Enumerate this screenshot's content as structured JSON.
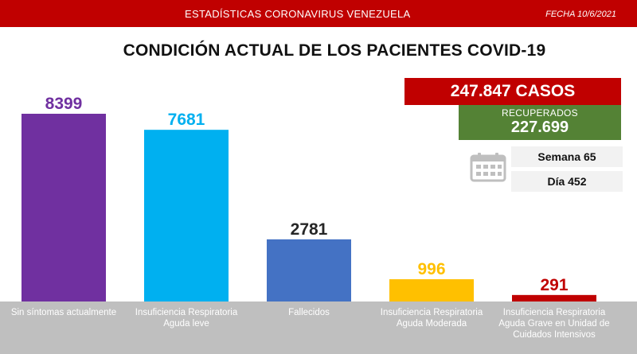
{
  "header": {
    "title": "ESTADÍSTICAS CORONAVIRUS VENEZUELA",
    "date": "FECHA 10/6/2021"
  },
  "chart_data": {
    "type": "bar",
    "title": "CONDICIÓN ACTUAL DE LOS PACIENTES COVID-19",
    "categories": [
      "Sin síntomas actualmente",
      "Insuficiencia Respiratoria Aguda leve",
      "Fallecidos",
      "Insuficiencia Respiratoria Aguda Moderada",
      "Insuficiencia Respiratoria Aguda Grave en Unidad de Cuidados Intensivos"
    ],
    "values": [
      8399,
      7681,
      2781,
      996,
      291
    ],
    "value_labels": [
      "8399",
      "7681",
      "2781",
      "996",
      "291"
    ],
    "colors": [
      "#7030a0",
      "#00b0f0",
      "#4472c4",
      "#ffc000",
      "#c00000"
    ],
    "ylim": [
      0,
      8399
    ],
    "xlabel": "",
    "ylabel": "",
    "grid": false,
    "legend": "none"
  },
  "summary": {
    "cases": "247.847 CASOS",
    "recovered_label": "RECUPERADOS",
    "recovered_value": "227.699",
    "week": "Semana 65",
    "day": "Día 452"
  },
  "icons": {
    "calendar": "calendar-icon"
  }
}
